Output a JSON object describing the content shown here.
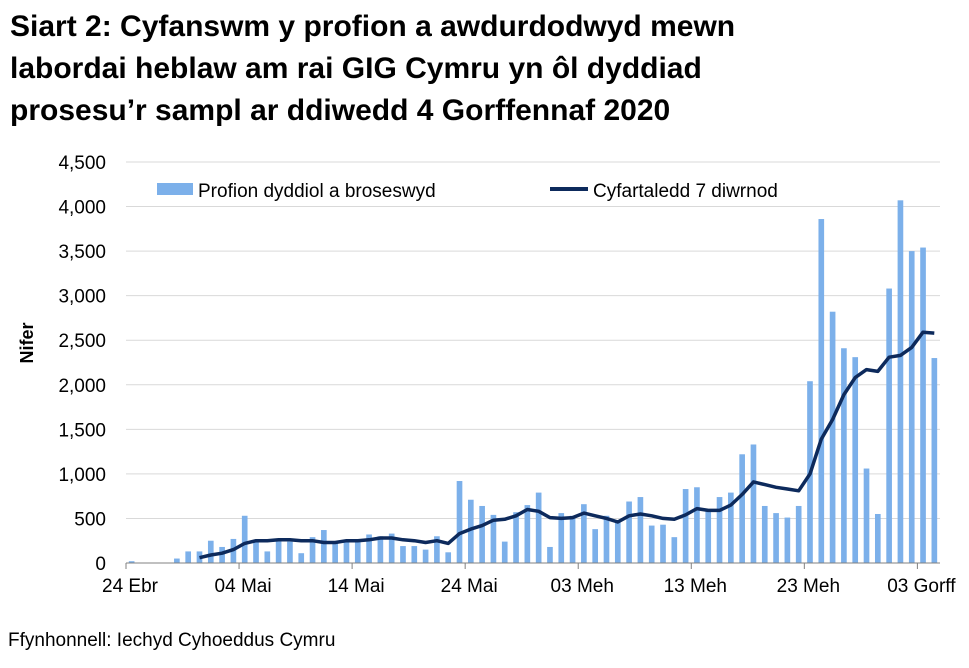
{
  "title_lines": [
    "Siart 2: Cyfanswm y profion a awdurdodwyd mewn",
    "labordai heblaw am rai GIG Cymru yn ôl dyddiad",
    "prosesu’r sampl ar ddiwedd 4 Gorffennaf 2020"
  ],
  "source": "Ffynhonnell: Iechyd Cyhoeddus Cymru",
  "colors": {
    "bar": "#7cb0ea",
    "line": "#0d2a5c",
    "grid": "#d9d9d9",
    "axis": "#808080"
  },
  "chart_data": {
    "type": "bar",
    "ylabel": "Nifer",
    "ylim": [
      0,
      4500
    ],
    "yticks": [
      0,
      500,
      1000,
      1500,
      2000,
      2500,
      3000,
      3500,
      4000,
      4500
    ],
    "ytick_labels": [
      "0",
      "500",
      "1,000",
      "1,500",
      "2,000",
      "2,500",
      "3,000",
      "3,500",
      "4,000",
      "4,500"
    ],
    "xtick_labels": [
      {
        "index": 0,
        "label": "24 Ebr"
      },
      {
        "index": 10,
        "label": "04 Mai"
      },
      {
        "index": 20,
        "label": "14 Mai"
      },
      {
        "index": 30,
        "label": "24 Mai"
      },
      {
        "index": 40,
        "label": "03 Meh"
      },
      {
        "index": 50,
        "label": "13 Meh"
      },
      {
        "index": 60,
        "label": "23 Meh"
      },
      {
        "index": 70,
        "label": "03 Gorff"
      }
    ],
    "grid": true,
    "legend_position": "top",
    "legend": {
      "bar_label": "Profion dyddiol a broseswyd",
      "line_label": "Cyfartaledd 7 diwrnod"
    },
    "categories_start": "24 Ebr",
    "daily_tests": [
      20,
      0,
      0,
      0,
      50,
      130,
      130,
      250,
      180,
      270,
      530,
      250,
      130,
      250,
      240,
      110,
      290,
      370,
      240,
      250,
      250,
      320,
      300,
      330,
      190,
      190,
      150,
      300,
      120,
      920,
      710,
      640,
      540,
      240,
      570,
      650,
      790,
      180,
      560,
      530,
      660,
      380,
      530,
      460,
      690,
      740,
      420,
      430,
      290,
      830,
      850,
      580,
      740,
      790,
      1220,
      1330,
      640,
      560,
      510,
      640,
      2040,
      3860,
      2820,
      2410,
      2310,
      1060,
      550,
      3080,
      4070,
      3500,
      3540,
      2300
    ],
    "avg_7day": [
      null,
      null,
      null,
      null,
      null,
      null,
      60,
      90,
      110,
      150,
      220,
      250,
      250,
      260,
      260,
      250,
      250,
      230,
      230,
      250,
      250,
      260,
      280,
      280,
      260,
      250,
      230,
      250,
      220,
      330,
      380,
      420,
      480,
      490,
      530,
      600,
      580,
      510,
      500,
      510,
      560,
      530,
      500,
      460,
      530,
      550,
      530,
      500,
      490,
      540,
      610,
      590,
      590,
      650,
      770,
      910,
      880,
      850,
      830,
      810,
      1000,
      1390,
      1610,
      1890,
      2080,
      2170,
      2150,
      2310,
      2330,
      2420,
      2590,
      2580
    ]
  }
}
